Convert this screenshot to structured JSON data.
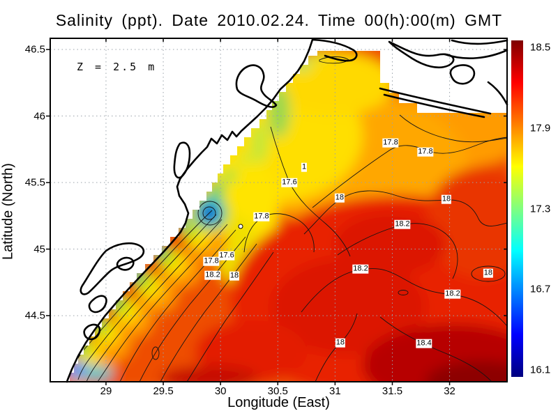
{
  "colors": {
    "background": "#ffffff",
    "land": "#ffffff",
    "coastline": "#000000",
    "contour_line": "#141414",
    "grid_line": "#9aa2aa",
    "frame": "#000000",
    "contour_label_bg": "#ffffff"
  },
  "chart_data": {
    "type": "heatmap",
    "title": "Salinity (ppt). Date 2010.02.24. Time 00(h):00(m) GMT",
    "annotation": "Z = 2.5 m",
    "xlabel": "Longitude (East)",
    "ylabel": "Latitude (North)",
    "units": "ppt",
    "xlim": [
      28.513,
      32.502
    ],
    "ylim": [
      44.003,
      46.584
    ],
    "x_ticks": [
      29,
      29.5,
      30,
      30.5,
      31,
      31.5,
      32
    ],
    "y_ticks": [
      44.5,
      45,
      45.5,
      46,
      46.5
    ],
    "grid": true,
    "legend_position": "right-colorbar",
    "colorbar": {
      "ticks": [
        16.1,
        16.7,
        17.3,
        17.9,
        18.5
      ],
      "range": [
        16.05,
        18.55
      ],
      "palette_bottom_to_top": [
        "#00007f",
        "#0000ff",
        "#00ffff",
        "#ffff00",
        "#ff0000",
        "#7f0000"
      ],
      "palette_positions": [
        0,
        0.125,
        0.375,
        0.625,
        0.875,
        1
      ]
    },
    "contour_labels": [
      {
        "value": "17.8",
        "lon": 31.485,
        "lat": 45.799
      },
      {
        "value": "17.8",
        "lon": 31.789,
        "lat": 45.731
      },
      {
        "value": "17.6",
        "lon": 30.602,
        "lat": 45.5
      },
      {
        "value": "1",
        "lon": 30.73,
        "lat": 45.615
      },
      {
        "value": "18",
        "lon": 31.04,
        "lat": 45.385
      },
      {
        "value": "18",
        "lon": 31.972,
        "lat": 45.375
      },
      {
        "value": "17.8",
        "lon": 30.358,
        "lat": 45.244
      },
      {
        "value": "18.2",
        "lon": 31.588,
        "lat": 45.186
      },
      {
        "value": "17.6",
        "lon": 30.054,
        "lat": 44.951
      },
      {
        "value": "17.8",
        "lon": 29.92,
        "lat": 44.909
      },
      {
        "value": "18.2",
        "lon": 29.932,
        "lat": 44.804
      },
      {
        "value": "18",
        "lon": 30.121,
        "lat": 44.799
      },
      {
        "value": "18.2",
        "lon": 31.223,
        "lat": 44.851
      },
      {
        "value": "18",
        "lon": 32.337,
        "lat": 44.82
      },
      {
        "value": "18.2",
        "lon": 32.027,
        "lat": 44.663
      },
      {
        "value": "18",
        "lon": 31.046,
        "lat": 44.296
      },
      {
        "value": "18.4",
        "lon": 31.777,
        "lat": 44.291
      }
    ],
    "station_marker": {
      "lon": 30.175,
      "lat": 45.17
    }
  }
}
